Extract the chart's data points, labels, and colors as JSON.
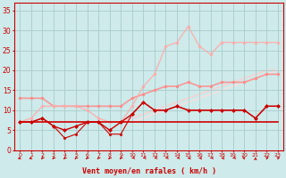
{
  "x": [
    0,
    1,
    2,
    3,
    4,
    5,
    6,
    7,
    8,
    9,
    10,
    11,
    12,
    13,
    14,
    15,
    16,
    17,
    18,
    19,
    20,
    21,
    22,
    23
  ],
  "background_color": "#ceeaea",
  "grid_color": "#aacccc",
  "xlabel": "Vent moyen/en rafales ( km/h )",
  "ylim": [
    0,
    37
  ],
  "xlim": [
    -0.5,
    23.5
  ],
  "yticks": [
    0,
    5,
    10,
    15,
    20,
    25,
    30,
    35
  ],
  "lines": [
    {
      "y": [
        7,
        7,
        7,
        7,
        7,
        7,
        7,
        7,
        7,
        7,
        7,
        7,
        7,
        7,
        7,
        7,
        7,
        7,
        7,
        7,
        7,
        7,
        7,
        7
      ],
      "color": "#cc0000",
      "lw": 1.2,
      "marker": null,
      "ms": 0,
      "zorder": 3,
      "alpha": 1.0
    },
    {
      "y": [
        7,
        7,
        8,
        6,
        5,
        6,
        7,
        7,
        5,
        7,
        9,
        12,
        10,
        10,
        11,
        10,
        10,
        10,
        10,
        10,
        10,
        8,
        11,
        11
      ],
      "color": "#cc0000",
      "lw": 1.0,
      "marker": "D",
      "ms": 2.0,
      "zorder": 5,
      "alpha": 1.0
    },
    {
      "y": [
        7,
        7,
        8,
        6,
        3,
        4,
        7,
        7,
        4,
        4,
        9,
        12,
        10,
        10,
        11,
        10,
        10,
        10,
        10,
        10,
        10,
        8,
        11,
        11
      ],
      "color": "#cc0000",
      "lw": 0.8,
      "marker": "D",
      "ms": 1.5,
      "zorder": 4,
      "alpha": 1.0
    },
    {
      "y": [
        13,
        13,
        13,
        11,
        11,
        11,
        11,
        11,
        11,
        11,
        13,
        14,
        15,
        16,
        16,
        17,
        16,
        16,
        17,
        17,
        17,
        18,
        19,
        19
      ],
      "color": "#ff8888",
      "lw": 1.2,
      "marker": "o",
      "ms": 2.0,
      "zorder": 2,
      "alpha": 0.85
    },
    {
      "y": [
        7,
        8,
        11,
        11,
        11,
        11,
        10,
        8,
        7,
        7,
        11,
        16,
        19,
        26,
        27,
        31,
        26,
        24,
        27,
        27,
        27,
        27,
        27,
        27
      ],
      "color": "#ffaaaa",
      "lw": 1.0,
      "marker": "o",
      "ms": 2.0,
      "zorder": 2,
      "alpha": 0.85
    },
    {
      "y": [
        7,
        7,
        7,
        7,
        7,
        7,
        7,
        7,
        7,
        7,
        8,
        9,
        10,
        11,
        12,
        13,
        14,
        15,
        16,
        17,
        18,
        19,
        20,
        20
      ],
      "color": "#ffcccc",
      "lw": 1.0,
      "marker": null,
      "ms": 0,
      "zorder": 1,
      "alpha": 0.9
    },
    {
      "y": [
        7,
        7,
        7,
        7,
        7,
        7,
        7,
        7,
        7,
        7,
        7,
        8,
        9,
        10,
        11,
        12,
        13,
        14,
        15,
        16,
        17,
        18,
        19,
        20
      ],
      "color": "#ffdddd",
      "lw": 1.0,
      "marker": null,
      "ms": 0,
      "zorder": 1,
      "alpha": 0.9
    }
  ],
  "arrow_angles": [
    225,
    225,
    202,
    202,
    202,
    202,
    202,
    202,
    202,
    202,
    247,
    247,
    247,
    247,
    247,
    270,
    270,
    247,
    270,
    247,
    315,
    0,
    45,
    45
  ]
}
